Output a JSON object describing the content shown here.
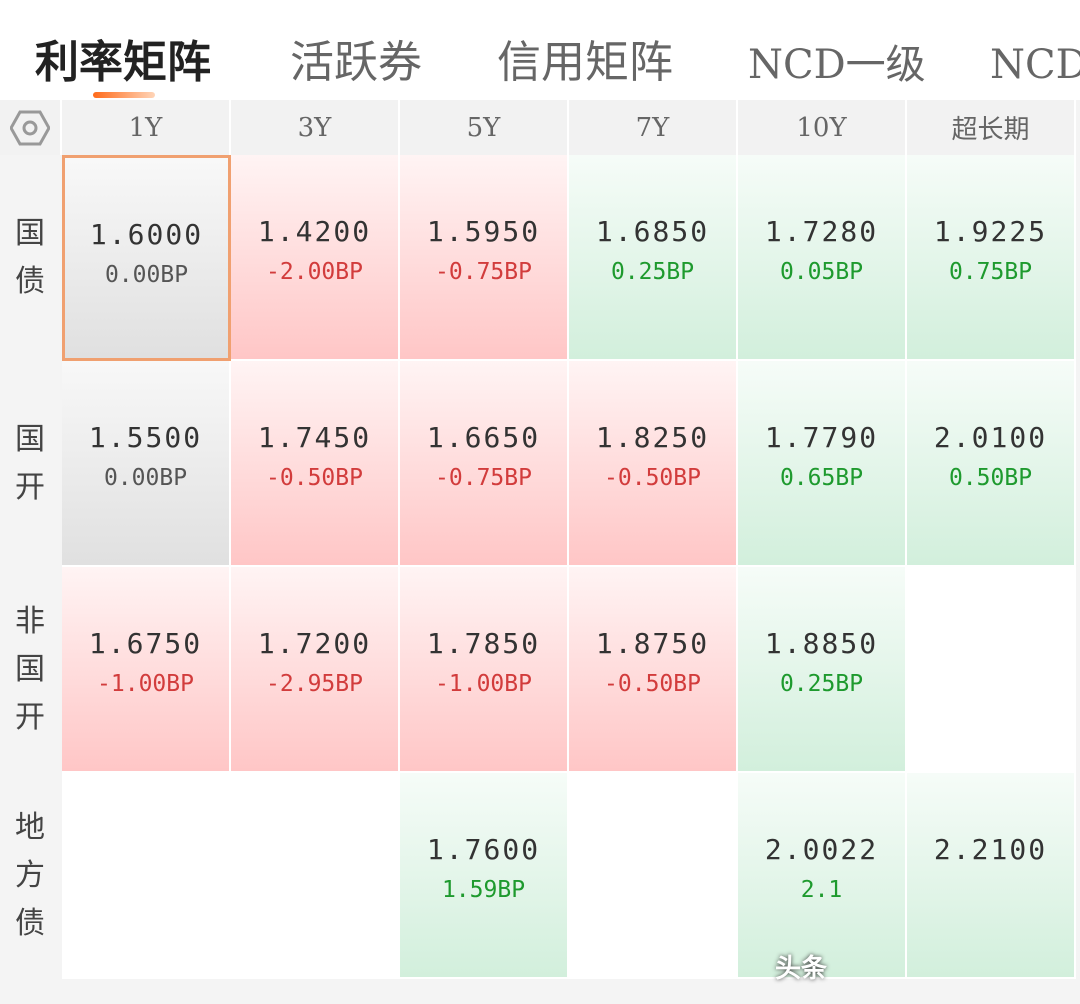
{
  "tabs": {
    "items": [
      "利率矩阵",
      "活跃券",
      "信用矩阵",
      "NCD一级",
      "NCD二级"
    ],
    "active": 0
  },
  "matrix": {
    "columns": [
      "1Y",
      "3Y",
      "5Y",
      "7Y",
      "10Y",
      "超长期"
    ],
    "rows": [
      {
        "label": "国债",
        "cells": [
          {
            "value": "1.6000",
            "change": "0.00BP",
            "tone": "flat",
            "selected": true
          },
          {
            "value": "1.4200",
            "change": "-2.00BP",
            "tone": "down"
          },
          {
            "value": "1.5950",
            "change": "-0.75BP",
            "tone": "down"
          },
          {
            "value": "1.6850",
            "change": "0.25BP",
            "tone": "up"
          },
          {
            "value": "1.7280",
            "change": "0.05BP",
            "tone": "up"
          },
          {
            "value": "1.9225",
            "change": "0.75BP",
            "tone": "up"
          }
        ]
      },
      {
        "label": "国开",
        "cells": [
          {
            "value": "1.5500",
            "change": "0.00BP",
            "tone": "flat"
          },
          {
            "value": "1.7450",
            "change": "-0.50BP",
            "tone": "down"
          },
          {
            "value": "1.6650",
            "change": "-0.75BP",
            "tone": "down"
          },
          {
            "value": "1.8250",
            "change": "-0.50BP",
            "tone": "down"
          },
          {
            "value": "1.7790",
            "change": "0.65BP",
            "tone": "up"
          },
          {
            "value": "2.0100",
            "change": "0.50BP",
            "tone": "up"
          }
        ]
      },
      {
        "label": "非国开",
        "cells": [
          {
            "value": "1.6750",
            "change": "-1.00BP",
            "tone": "down"
          },
          {
            "value": "1.7200",
            "change": "-2.95BP",
            "tone": "down"
          },
          {
            "value": "1.7850",
            "change": "-1.00BP",
            "tone": "down"
          },
          {
            "value": "1.8750",
            "change": "-0.50BP",
            "tone": "down"
          },
          {
            "value": "1.8850",
            "change": "0.25BP",
            "tone": "up"
          },
          null
        ]
      },
      {
        "label": "地方债",
        "cells": [
          null,
          null,
          {
            "value": "1.7600",
            "change": "1.59BP",
            "tone": "up"
          },
          null,
          {
            "value": "2.0022",
            "change": "2.1",
            "tone": "up"
          },
          {
            "value": "2.2100",
            "tone": "up"
          }
        ]
      }
    ]
  },
  "watermark": "头条"
}
